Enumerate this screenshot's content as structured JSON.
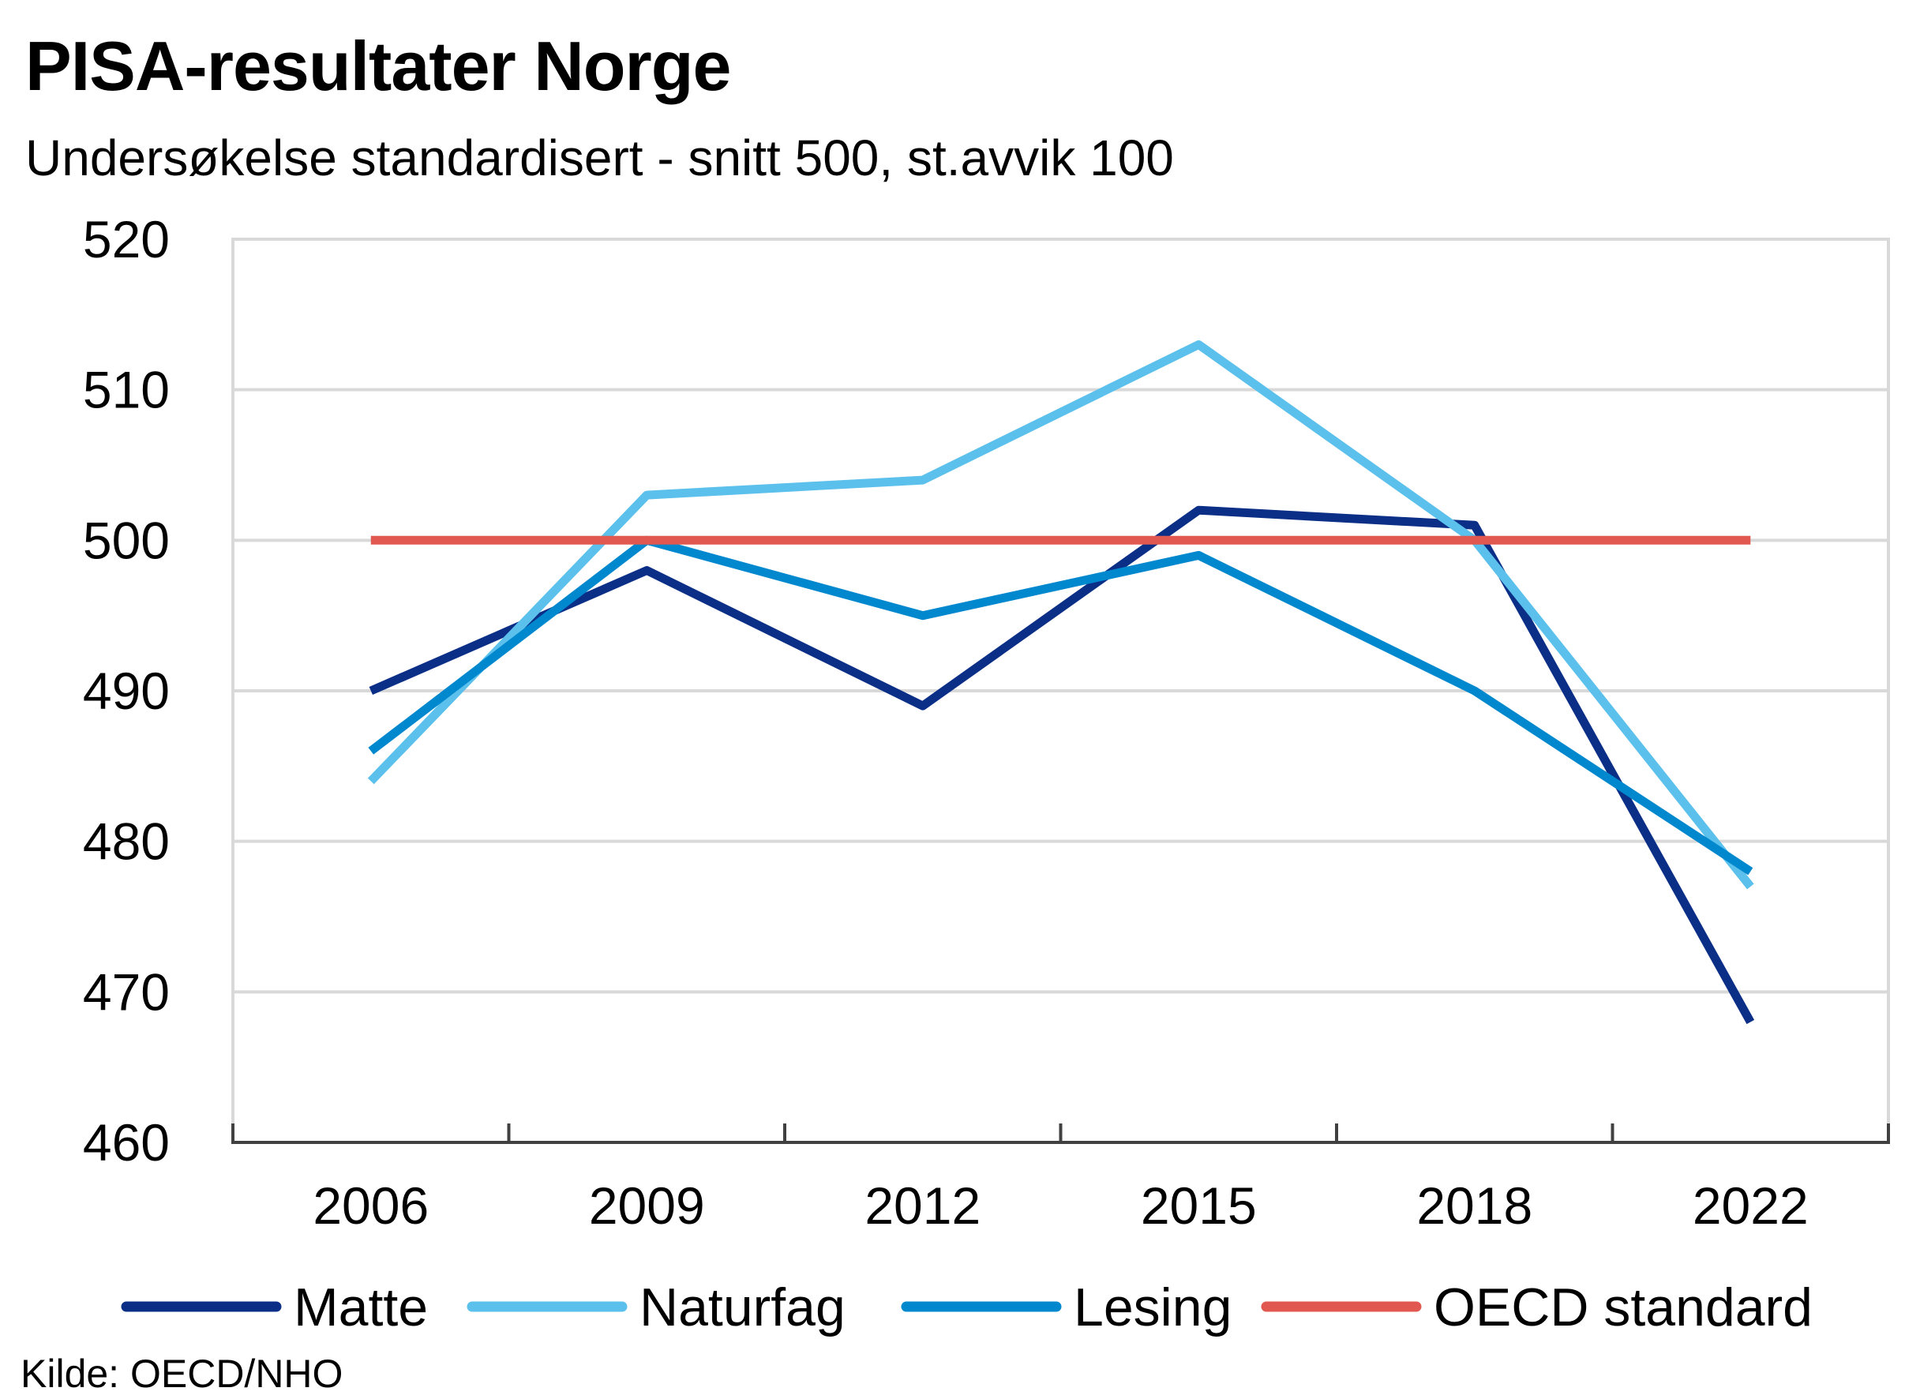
{
  "title": "PISA-resultater Norge",
  "subtitle": "Undersøkelse standardisert  - snitt 500, st.avvik 100",
  "source": "Kilde: OECD/NHO",
  "chart_data": {
    "type": "line",
    "categories": [
      "2006",
      "2009",
      "2012",
      "2015",
      "2018",
      "2022"
    ],
    "ylim": [
      460,
      520
    ],
    "yticks": [
      "460",
      "470",
      "480",
      "490",
      "500",
      "510",
      "520"
    ],
    "grid": true,
    "legend_position": "bottom",
    "series": [
      {
        "name": "Matte",
        "color": "#0b2f87",
        "values": [
          490,
          498,
          489,
          502,
          501,
          468
        ]
      },
      {
        "name": "Naturfag",
        "color": "#5bc0eb",
        "values": [
          484,
          503,
          504,
          513,
          500,
          477
        ]
      },
      {
        "name": "Lesing",
        "color": "#0088cf",
        "values": [
          486,
          500,
          495,
          499,
          490,
          478
        ]
      },
      {
        "name": "OECD standard",
        "color": "#e0584f",
        "values": [
          500,
          500,
          500,
          500,
          500,
          500
        ]
      }
    ]
  }
}
